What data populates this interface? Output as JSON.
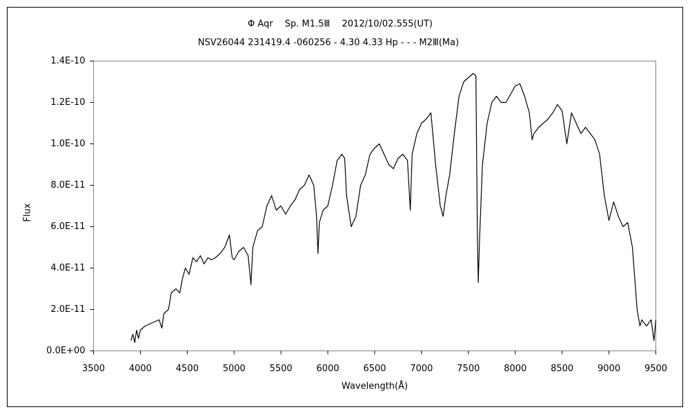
{
  "chart_data": {
    "type": "line",
    "title": "Φ Aqr　 Sp. M1.5Ⅲ　 2012/10/02.555(UT)",
    "subtitle": "NSV26044 231419.4 -060256 - 4.30 4.33 Hp - - - M2Ⅲ(Ma)",
    "x_label": "Wavelength(Å)",
    "y_label": "Flux",
    "xlim": [
      3500,
      9500
    ],
    "xticks": [
      3500,
      4000,
      4500,
      5000,
      5500,
      6000,
      6500,
      7000,
      7500,
      8000,
      8500,
      9000,
      9500
    ],
    "ylim": [
      0,
      1.4e-10
    ],
    "yticks": [
      {
        "value": 0,
        "label": "0.0E+00"
      },
      {
        "value": 2e-11,
        "label": "2.0E-11"
      },
      {
        "value": 4e-11,
        "label": "4.0E-11"
      },
      {
        "value": 6e-11,
        "label": "6.0E-11"
      },
      {
        "value": 8e-11,
        "label": "8.0E-11"
      },
      {
        "value": 1e-10,
        "label": "1.0E-10"
      },
      {
        "value": 1.2e-10,
        "label": "1.2E-10"
      },
      {
        "value": 1.4e-10,
        "label": "1.4E-10"
      }
    ],
    "grid": false,
    "color": "#000000",
    "x": [
      3900,
      3920,
      3940,
      3960,
      3980,
      4000,
      4050,
      4100,
      4150,
      4200,
      4230,
      4250,
      4300,
      4330,
      4380,
      4420,
      4450,
      4480,
      4520,
      4560,
      4600,
      4640,
      4680,
      4720,
      4760,
      4800,
      4850,
      4900,
      4950,
      4980,
      5000,
      5050,
      5100,
      5150,
      5180,
      5200,
      5250,
      5300,
      5350,
      5400,
      5450,
      5500,
      5550,
      5600,
      5650,
      5700,
      5750,
      5800,
      5850,
      5880,
      5895,
      5910,
      5950,
      6000,
      6050,
      6100,
      6150,
      6180,
      6200,
      6250,
      6300,
      6350,
      6400,
      6450,
      6500,
      6550,
      6600,
      6650,
      6700,
      6750,
      6800,
      6850,
      6880,
      6900,
      6950,
      7000,
      7050,
      7100,
      7150,
      7200,
      7230,
      7260,
      7300,
      7350,
      7400,
      7450,
      7500,
      7550,
      7580,
      7595,
      7605,
      7620,
      7650,
      7700,
      7750,
      7800,
      7850,
      7900,
      7950,
      8000,
      8050,
      8100,
      8150,
      8180,
      8200,
      8250,
      8300,
      8350,
      8400,
      8450,
      8500,
      8550,
      8600,
      8650,
      8700,
      8750,
      8800,
      8850,
      8900,
      8950,
      9000,
      9050,
      9100,
      9150,
      9200,
      9250,
      9300,
      9330,
      9350,
      9400,
      9450,
      9480,
      9500
    ],
    "values": [
      5e-12,
      8e-12,
      4e-12,
      1e-11,
      6e-12,
      1e-11,
      1.2e-11,
      1.3e-11,
      1.4e-11,
      1.5e-11,
      1.1e-11,
      1.8e-11,
      2e-11,
      2.8e-11,
      3e-11,
      2.8e-11,
      3.5e-11,
      4e-11,
      3.7e-11,
      4.5e-11,
      4.3e-11,
      4.6e-11,
      4.2e-11,
      4.5e-11,
      4.4e-11,
      4.5e-11,
      4.7e-11,
      5e-11,
      5.6e-11,
      4.5e-11,
      4.4e-11,
      4.8e-11,
      5e-11,
      4.6e-11,
      3.2e-11,
      5e-11,
      5.8e-11,
      6e-11,
      7e-11,
      7.5e-11,
      6.8e-11,
      7e-11,
      6.6e-11,
      7e-11,
      7.3e-11,
      7.8e-11,
      8e-11,
      8.5e-11,
      8e-11,
      6.5e-11,
      4.7e-11,
      6.2e-11,
      6.8e-11,
      7e-11,
      8e-11,
      9.2e-11,
      9.5e-11,
      9.3e-11,
      7.5e-11,
      6e-11,
      6.5e-11,
      8e-11,
      8.5e-11,
      9.5e-11,
      9.8e-11,
      1e-10,
      9.5e-11,
      9e-11,
      8.8e-11,
      9.3e-11,
      9.5e-11,
      9.2e-11,
      6.8e-11,
      9.5e-11,
      1.05e-10,
      1.1e-10,
      1.12e-10,
      1.15e-10,
      9e-11,
      7e-11,
      6.5e-11,
      7.5e-11,
      8.5e-11,
      1.05e-10,
      1.23e-10,
      1.3e-10,
      1.32e-10,
      1.34e-10,
      1.33e-10,
      6e-11,
      3.3e-11,
      5.5e-11,
      9e-11,
      1.1e-10,
      1.2e-10,
      1.23e-10,
      1.2e-10,
      1.2e-10,
      1.24e-10,
      1.28e-10,
      1.29e-10,
      1.23e-10,
      1.15e-10,
      1.02e-10,
      1.05e-10,
      1.08e-10,
      1.1e-10,
      1.12e-10,
      1.15e-10,
      1.19e-10,
      1.16e-10,
      1e-10,
      1.15e-10,
      1.1e-10,
      1.05e-10,
      1.08e-10,
      1.05e-10,
      1.02e-10,
      9.5e-11,
      7.5e-11,
      6.3e-11,
      7.2e-11,
      6.5e-11,
      6e-11,
      6.2e-11,
      5e-11,
      2e-11,
      1.2e-11,
      1.5e-11,
      1.2e-11,
      1.5e-11,
      5e-12,
      1.5e-11
    ]
  }
}
